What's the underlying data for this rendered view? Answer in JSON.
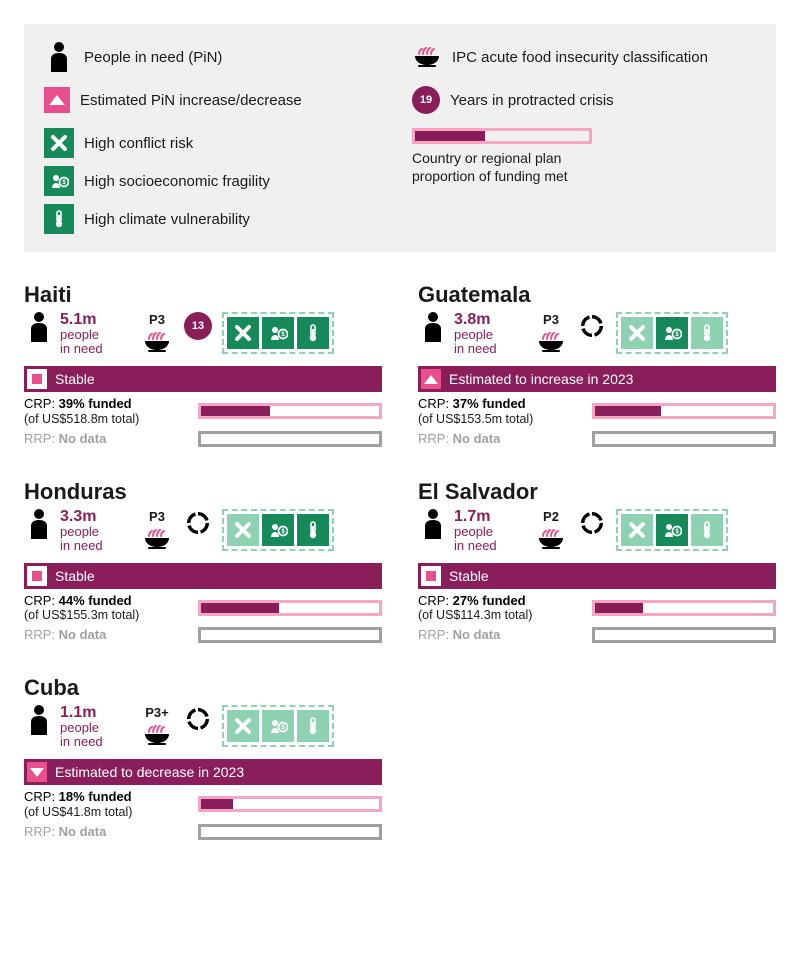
{
  "colors": {
    "dark_maroon": "#8a1e5a",
    "pink": "#e84f8c",
    "light_pink": "#f6a6c2",
    "green_dark": "#178a5c",
    "green_light": "#8ed1b3",
    "gray": "#a0a0a0",
    "legend_bg": "#f1f0f0"
  },
  "legend": {
    "pin": "People in need (PiN)",
    "trend": "Estimated PiN increase/decrease",
    "ipc": "IPC acute food insecurity classification",
    "crisis": "Years in protracted crisis",
    "crisis_sample_years": "19",
    "conflict": "High conflict risk",
    "socio": "High socioeconomic fragility",
    "climate": "High climate vulnerability",
    "funding": "Country or regional plan proportion of funding met"
  },
  "countries": [
    {
      "name": "Haiti",
      "pin_value": "5.1m",
      "pin_label": "people\nin need",
      "ipc": "P3",
      "crisis_years": "13",
      "has_crisis": true,
      "risks": {
        "conflict": "dark",
        "socio": "dark",
        "climate": "dark"
      },
      "trend": {
        "type": "stable",
        "text": "Stable"
      },
      "crp": {
        "label": "CRP",
        "pct": 39,
        "line1": "39% funded",
        "line2": "(of US$518.8m total)"
      },
      "rrp": {
        "label": "RRP",
        "no_data": true,
        "text": "No data"
      }
    },
    {
      "name": "Guatemala",
      "pin_value": "3.8m",
      "pin_label": "people\nin need",
      "ipc": "P3",
      "has_crisis": false,
      "risks": {
        "conflict": "light",
        "socio": "dark",
        "climate": "light"
      },
      "trend": {
        "type": "increase",
        "text": "Estimated to increase in 2023"
      },
      "crp": {
        "label": "CRP",
        "pct": 37,
        "line1": "37% funded",
        "line2": "(of US$153.5m total)"
      },
      "rrp": {
        "label": "RRP",
        "no_data": true,
        "text": "No data"
      }
    },
    {
      "name": "Honduras",
      "pin_value": "3.3m",
      "pin_label": "people\nin need",
      "ipc": "P3",
      "has_crisis": false,
      "risks": {
        "conflict": "light",
        "socio": "dark",
        "climate": "dark"
      },
      "trend": {
        "type": "stable",
        "text": "Stable"
      },
      "crp": {
        "label": "CRP",
        "pct": 44,
        "line1": "44% funded",
        "line2": "(of US$155.3m total)"
      },
      "rrp": {
        "label": "RRP",
        "no_data": true,
        "text": "No data"
      }
    },
    {
      "name": "El Salvador",
      "pin_value": "1.7m",
      "pin_label": "people\nin need",
      "ipc": "P2",
      "has_crisis": false,
      "risks": {
        "conflict": "light",
        "socio": "dark",
        "climate": "light"
      },
      "trend": {
        "type": "stable",
        "text": "Stable"
      },
      "crp": {
        "label": "CRP",
        "pct": 27,
        "line1": "27% funded",
        "line2": "(of US$114.3m total)"
      },
      "rrp": {
        "label": "RRP",
        "no_data": true,
        "text": "No data"
      }
    },
    {
      "name": "Cuba",
      "pin_value": "1.1m",
      "pin_label": "people\nin need",
      "ipc": "P3+",
      "has_crisis": false,
      "risks": {
        "conflict": "light",
        "socio": "light",
        "climate": "light"
      },
      "trend": {
        "type": "decrease",
        "text": "Estimated to decrease in 2023"
      },
      "crp": {
        "label": "CRP",
        "pct": 18,
        "line1": "18% funded",
        "line2": "(of US$41.8m total)"
      },
      "rrp": {
        "label": "RRP",
        "no_data": true,
        "text": "No data"
      }
    }
  ]
}
